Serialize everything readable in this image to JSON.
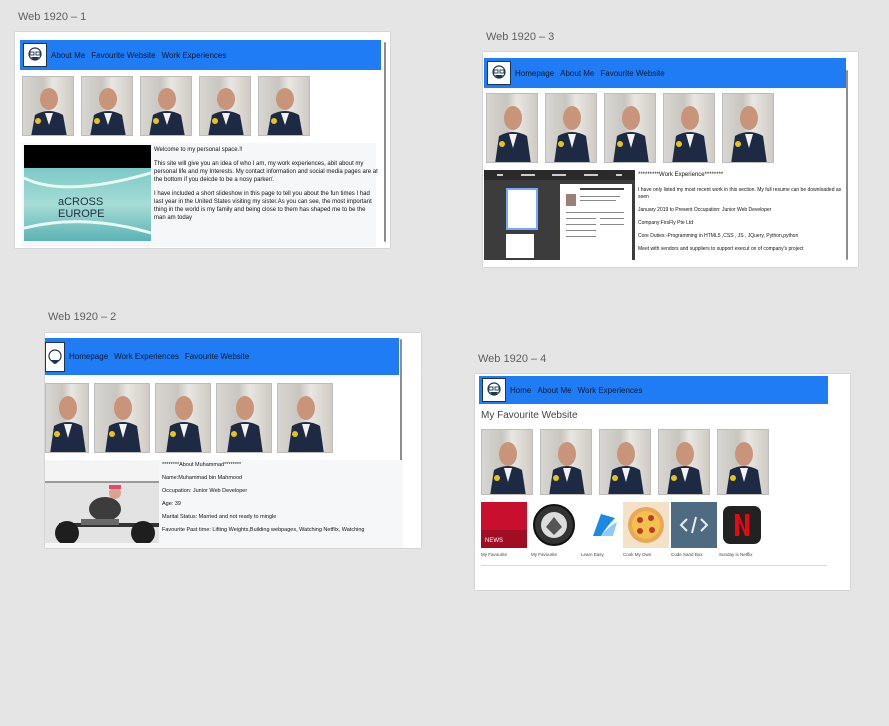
{
  "artboards": {
    "ab1": {
      "label": "Web 1920 – 1",
      "nav": [
        "About Me",
        "Favourite Website",
        "Work Experiences"
      ],
      "slide_text": "aCROSS EUROPE",
      "paragraphs": [
        "Welcome to my personal space.!!",
        "This site will give you an idea of who I am, my work experiences, abit about my personal life and my Interests. My contact information and social media pages are at the bottom if you deicde to be a nosy parker/.",
        "I have included a short slideshow in this page to tell you about the fun times I had last year in the United States visiting my sister.As you can see, the most important thing in the world is my family and being close to them has shaped me to be the man am today"
      ]
    },
    "ab2": {
      "label": "Web 1920 – 2",
      "nav": [
        "Homepage",
        "Work Experiences",
        "Favourite Website"
      ],
      "lines": [
        "********About Muhammad********",
        "Name:Muhammad bin Mahmood",
        "Occupation: Junior Web Developer",
        "Age: 39",
        "Marital Status: Married and not ready to mingle",
        "Favourite Past time: Lifting Weights,Building webpages, Watching Netflix, Watching"
      ]
    },
    "ab3": {
      "label": "Web 1920 – 3",
      "nav": [
        "Homepage",
        "About Me",
        "Favourite Website"
      ],
      "heading": "*********Work Experience********",
      "lines": [
        "I have only listed my most recent work in this section. My full resume can be downloaded as seen",
        "January 2019 to Present Occupation: Junior Web Developer",
        "Company:FirsFly Pte Ltd",
        "Core Duties:-Programming in HTML5 ,CSS , JS , JQuery, Python,python",
        "Meet with vendors and suppliers to support execut on of company's project"
      ]
    },
    "ab4": {
      "label": "Web 1920 – 4",
      "nav": [
        "Home",
        "About Me",
        "Work Experiences"
      ],
      "title": "My Favourite Website",
      "cards": [
        {
          "label": "My Favourite",
          "color": "#c8102e"
        },
        {
          "label": "My Favourite",
          "color": "#ffffff"
        },
        {
          "label": "Learn Easy",
          "color": "#ffffff"
        },
        {
          "label": "Cook My Own",
          "color": "#f3e2c7"
        },
        {
          "label": "Code Sand Box",
          "color": "#4f6b82"
        },
        {
          "label": "Sunday is Netflix",
          "color": "#222222"
        }
      ]
    }
  },
  "colors": {
    "nav_blue": "#1f7cf4",
    "canvas_bg": "#e5e5e5"
  }
}
